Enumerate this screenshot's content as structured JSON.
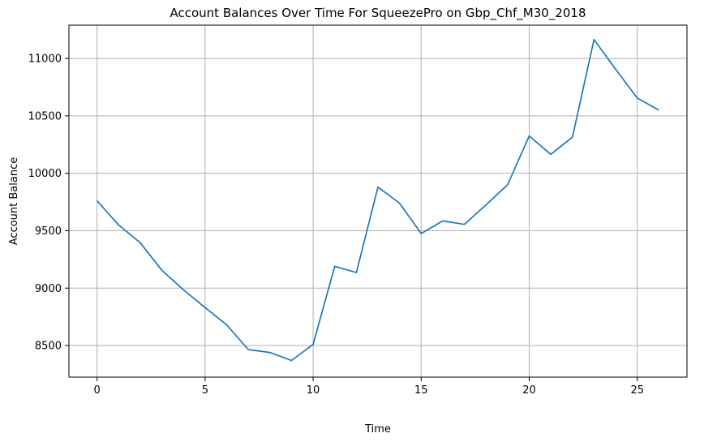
{
  "chart_data": {
    "type": "line",
    "title": "Account Balances Over Time For SqueezePro on Gbp_Chf_M30_2018",
    "xlabel": "Time",
    "ylabel": "Account Balance",
    "xlim": [
      -1.3,
      27.3
    ],
    "ylim": [
      8225,
      11290
    ],
    "xticks": [
      0,
      5,
      10,
      15,
      20,
      25
    ],
    "xtick_labels": [
      "0",
      "5",
      "10",
      "15",
      "20",
      "25"
    ],
    "yticks": [
      8500,
      9000,
      9500,
      10000,
      10500,
      11000
    ],
    "ytick_labels": [
      "8500",
      "9000",
      "9500",
      "10000",
      "10500",
      "11000"
    ],
    "grid": true,
    "legend": "none",
    "line_color": "#1f77b4",
    "series": [
      {
        "x": [
          0,
          1,
          2,
          3,
          4,
          5,
          6,
          7,
          8,
          9,
          10,
          11,
          12,
          13,
          14,
          15,
          16,
          17,
          18,
          19,
          20,
          21,
          22,
          23,
          24,
          25,
          26
        ],
        "values": [
          9760,
          9550,
          9395,
          9155,
          8985,
          8830,
          8680,
          8465,
          8440,
          8370,
          8510,
          9190,
          9135,
          9880,
          9740,
          9475,
          9585,
          9555,
          9725,
          9900,
          10325,
          10165,
          10315,
          11165,
          10905,
          10655,
          10550
        ]
      }
    ]
  }
}
